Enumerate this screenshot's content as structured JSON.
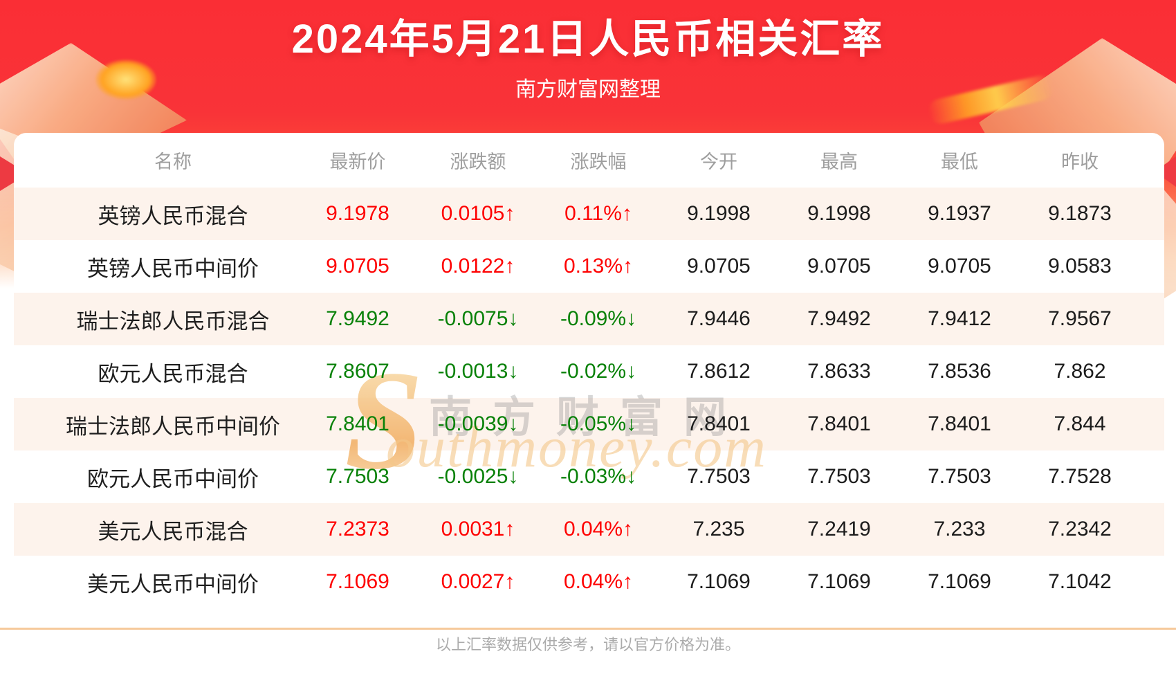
{
  "header": {
    "title": "2024年5月21日人民币相关汇率",
    "subtitle": "南方财富网整理"
  },
  "chart_data": {
    "type": "table",
    "title": "2024年5月21日人民币相关汇率",
    "subtitle": "南方财富网整理",
    "columns": [
      "名称",
      "最新价",
      "涨跌额",
      "涨跌幅",
      "今开",
      "最高",
      "最低",
      "昨收"
    ],
    "rows": [
      [
        "英镑人民币混合",
        "9.1978",
        "0.0105↑",
        "0.11%↑",
        "9.1998",
        "9.1998",
        "9.1937",
        "9.1873"
      ],
      [
        "英镑人民币中间价",
        "9.0705",
        "0.0122↑",
        "0.13%↑",
        "9.0705",
        "9.0705",
        "9.0705",
        "9.0583"
      ],
      [
        "瑞士法郎人民币混合",
        "7.9492",
        "-0.0075↓",
        "-0.09%↓",
        "7.9446",
        "7.9492",
        "7.9412",
        "7.9567"
      ],
      [
        "欧元人民币混合",
        "7.8607",
        "-0.0013↓",
        "-0.02%↓",
        "7.8612",
        "7.8633",
        "7.8536",
        "7.862"
      ],
      [
        "瑞士法郎人民币中间价",
        "7.8401",
        "-0.0039↓",
        "-0.05%↓",
        "7.8401",
        "7.8401",
        "7.8401",
        "7.844"
      ],
      [
        "欧元人民币中间价",
        "7.7503",
        "-0.0025↓",
        "-0.03%↓",
        "7.7503",
        "7.7503",
        "7.7503",
        "7.7528"
      ],
      [
        "美元人民币混合",
        "7.2373",
        "0.0031↑",
        "0.04%↑",
        "7.235",
        "7.2419",
        "7.233",
        "7.2342"
      ],
      [
        "美元人民币中间价",
        "7.1069",
        "0.0027↑",
        "0.04%↑",
        "7.1069",
        "7.1069",
        "7.1069",
        "7.1042"
      ]
    ],
    "row_directions": [
      "up",
      "up",
      "down",
      "down",
      "down",
      "down",
      "up",
      "up"
    ],
    "up_arrow": "↑",
    "down_arrow": "↓",
    "colors": {
      "up": "#fe0000",
      "down": "#088108",
      "neutral": "#1c1c1c",
      "header_red": "#fa2e35",
      "row_alt": "#fdf3ec",
      "divider": "#f6c99b"
    }
  },
  "watermark": {
    "s": "S",
    "cn": "南方财富网",
    "en": "outhmoney.com"
  },
  "footer": {
    "note": "以上汇率数据仅供参考，请以官方价格为准。"
  }
}
